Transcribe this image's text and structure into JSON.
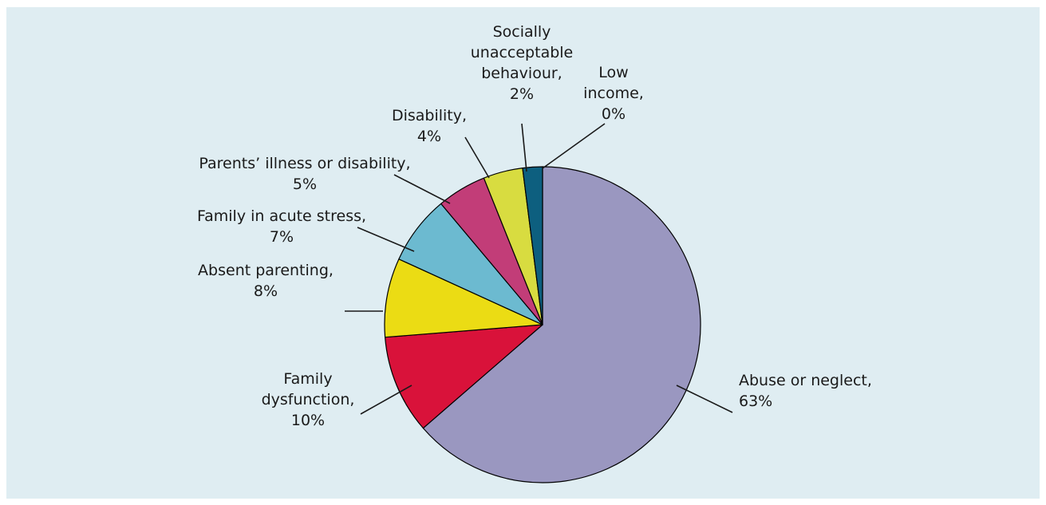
{
  "chart_data": {
    "type": "pie",
    "title": "",
    "colors": {
      "background": "#dfedf2"
    },
    "slices": [
      {
        "label": "Abuse or neglect,",
        "value": 63,
        "value_label": "63%",
        "color": "#9a97c0"
      },
      {
        "label": "Family dysfunction,",
        "value": 10,
        "value_label": "10%",
        "color": "#d9123a"
      },
      {
        "label": "Absent parenting,",
        "value": 8,
        "value_label": "8%",
        "color": "#ebdc14"
      },
      {
        "label": "Family in acute stress,",
        "value": 7,
        "value_label": "7%",
        "color": "#6cbad0"
      },
      {
        "label": "Parents’ illness or disability,",
        "value": 5,
        "value_label": "5%",
        "color": "#c23d78"
      },
      {
        "label": "Disability,",
        "value": 4,
        "value_label": "4%",
        "color": "#d8dc40"
      },
      {
        "label": "Socially unacceptable behaviour,",
        "value": 2,
        "value_label": "2%",
        "color": "#0d5f7f"
      },
      {
        "label": "Low income,",
        "value": 0,
        "value_label": "0%",
        "color": "#333333"
      }
    ]
  }
}
